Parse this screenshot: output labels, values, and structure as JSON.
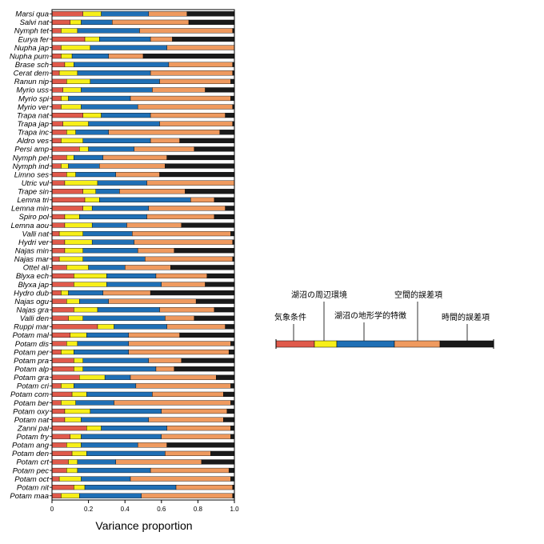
{
  "chart_data": {
    "type": "bar",
    "orientation": "horizontal",
    "stacked": true,
    "title": "",
    "xlabel": "Variance proportion",
    "ylabel": "",
    "xlim": [
      0,
      1
    ],
    "xticks": [
      "0",
      "0.2",
      "0.4",
      "0.6",
      "0.8",
      "1.0"
    ],
    "categories": [
      "Marsi qua",
      "Salvi nat",
      "Nymph tet",
      "Eurya fer",
      "Nupha jap",
      "Nupha pum",
      "Brase sch",
      "Cerat dem",
      "Ranun nip",
      "Myrio uss",
      "Myrio spi",
      "Myrio ver",
      "Trapa nat",
      "Trapa jap",
      "Trapa inc",
      "Aldro ves",
      "Persi amp",
      "Nymph pel",
      "Nymph ind",
      "Limno ses",
      "Utric vul",
      "Trape sin",
      "Lemna tri",
      "Lemna min",
      "Spiro pol",
      "Lemna aou",
      "Valli nat",
      "Hydri ver",
      "Najas min",
      "Najas mar",
      "Ottel ali",
      "Blyxa ech",
      "Blyxa jap",
      "Hydro dub",
      "Najas ogu",
      "Najas gra",
      "Valli den",
      "Ruppi mar",
      "Potam mal",
      "Potam dis",
      "Potam per",
      "Potam pra",
      "Potam alp",
      "Potam gra",
      "Potam cri",
      "Potam com",
      "Potam ber",
      "Potam oxy",
      "Potam nat",
      "Zanni pal",
      "Potam fry",
      "Potam ang",
      "Potam den",
      "Potam crt",
      "Potam pec",
      "Potam oct",
      "Potam nit",
      "Potam maa"
    ],
    "series": [
      {
        "name": "気象条件",
        "color": "#e05a4b",
        "values": [
          0.17,
          0.1,
          0.05,
          0.18,
          0.05,
          0.05,
          0.07,
          0.04,
          0.08,
          0.06,
          0.05,
          0.05,
          0.17,
          0.06,
          0.08,
          0.05,
          0.15,
          0.08,
          0.05,
          0.08,
          0.07,
          0.17,
          0.18,
          0.17,
          0.07,
          0.07,
          0.04,
          0.07,
          0.07,
          0.04,
          0.08,
          0.12,
          0.12,
          0.05,
          0.08,
          0.12,
          0.09,
          0.25,
          0.1,
          0.08,
          0.05,
          0.12,
          0.12,
          0.15,
          0.05,
          0.11,
          0.05,
          0.07,
          0.07,
          0.19,
          0.1,
          0.08,
          0.11,
          0.09,
          0.08,
          0.04,
          0.12,
          0.05
        ]
      },
      {
        "name": "湖沼の周辺環境",
        "color": "#f7ef19",
        "values": [
          0.1,
          0.06,
          0.09,
          0.08,
          0.16,
          0.06,
          0.05,
          0.1,
          0.13,
          0.1,
          0.04,
          0.11,
          0.1,
          0.14,
          0.05,
          0.12,
          0.05,
          0.04,
          0.04,
          0.05,
          0.18,
          0.07,
          0.08,
          0.05,
          0.08,
          0.15,
          0.13,
          0.15,
          0.1,
          0.13,
          0.12,
          0.18,
          0.18,
          0.04,
          0.07,
          0.13,
          0.08,
          0.09,
          0.09,
          0.06,
          0.07,
          0.05,
          0.05,
          0.14,
          0.07,
          0.08,
          0.08,
          0.14,
          0.09,
          0.08,
          0.06,
          0.08,
          0.08,
          0.05,
          0.06,
          0.12,
          0.06,
          0.1
        ]
      },
      {
        "name": "湖沼の地形学的特徴",
        "color": "#1f6fb5",
        "values": [
          0.26,
          0.17,
          0.34,
          0.28,
          0.42,
          0.2,
          0.52,
          0.4,
          0.38,
          0.39,
          0.34,
          0.31,
          0.27,
          0.39,
          0.18,
          0.37,
          0.25,
          0.16,
          0.17,
          0.22,
          0.27,
          0.13,
          0.5,
          0.31,
          0.37,
          0.19,
          0.27,
          0.23,
          0.3,
          0.34,
          0.2,
          0.27,
          0.3,
          0.19,
          0.16,
          0.34,
          0.45,
          0.29,
          0.23,
          0.28,
          0.3,
          0.36,
          0.4,
          0.14,
          0.34,
          0.36,
          0.21,
          0.39,
          0.37,
          0.36,
          0.44,
          0.31,
          0.43,
          0.21,
          0.4,
          0.27,
          0.5,
          0.34
        ]
      },
      {
        "name": "空間的誤差項",
        "color": "#ef9a5f",
        "values": [
          0.21,
          0.42,
          0.51,
          0.12,
          0.37,
          0.19,
          0.35,
          0.45,
          0.39,
          0.29,
          0.55,
          0.52,
          0.41,
          0.4,
          0.61,
          0.16,
          0.33,
          0.35,
          0.36,
          0.24,
          0.48,
          0.36,
          0.13,
          0.42,
          0.37,
          0.3,
          0.54,
          0.54,
          0.2,
          0.48,
          0.25,
          0.28,
          0.24,
          0.26,
          0.48,
          0.3,
          0.16,
          0.32,
          0.28,
          0.56,
          0.55,
          0.18,
          0.1,
          0.47,
          0.52,
          0.39,
          0.64,
          0.36,
          0.41,
          0.35,
          0.38,
          0.16,
          0.25,
          0.47,
          0.43,
          0.55,
          0.31,
          0.5
        ]
      },
      {
        "name": "時間的誤差項",
        "color": "#1a1a1a",
        "values": [
          0.26,
          0.25,
          0.01,
          0.34,
          0.0,
          0.5,
          0.01,
          0.01,
          0.02,
          0.16,
          0.02,
          0.01,
          0.05,
          0.01,
          0.08,
          0.3,
          0.22,
          0.37,
          0.38,
          0.41,
          0.0,
          0.27,
          0.11,
          0.05,
          0.11,
          0.29,
          0.02,
          0.01,
          0.33,
          0.01,
          0.35,
          0.15,
          0.16,
          0.46,
          0.21,
          0.11,
          0.22,
          0.05,
          0.3,
          0.02,
          0.03,
          0.29,
          0.33,
          0.1,
          0.02,
          0.06,
          0.02,
          0.04,
          0.06,
          0.02,
          0.02,
          0.37,
          0.13,
          0.18,
          0.03,
          0.02,
          0.01,
          0.01
        ]
      }
    ],
    "legend": {
      "placement": "right",
      "labels": [
        "気象条件",
        "湖沼の周辺環境",
        "湖沼の地形学的特徴",
        "空間的誤差項",
        "時間的誤差項"
      ]
    }
  }
}
